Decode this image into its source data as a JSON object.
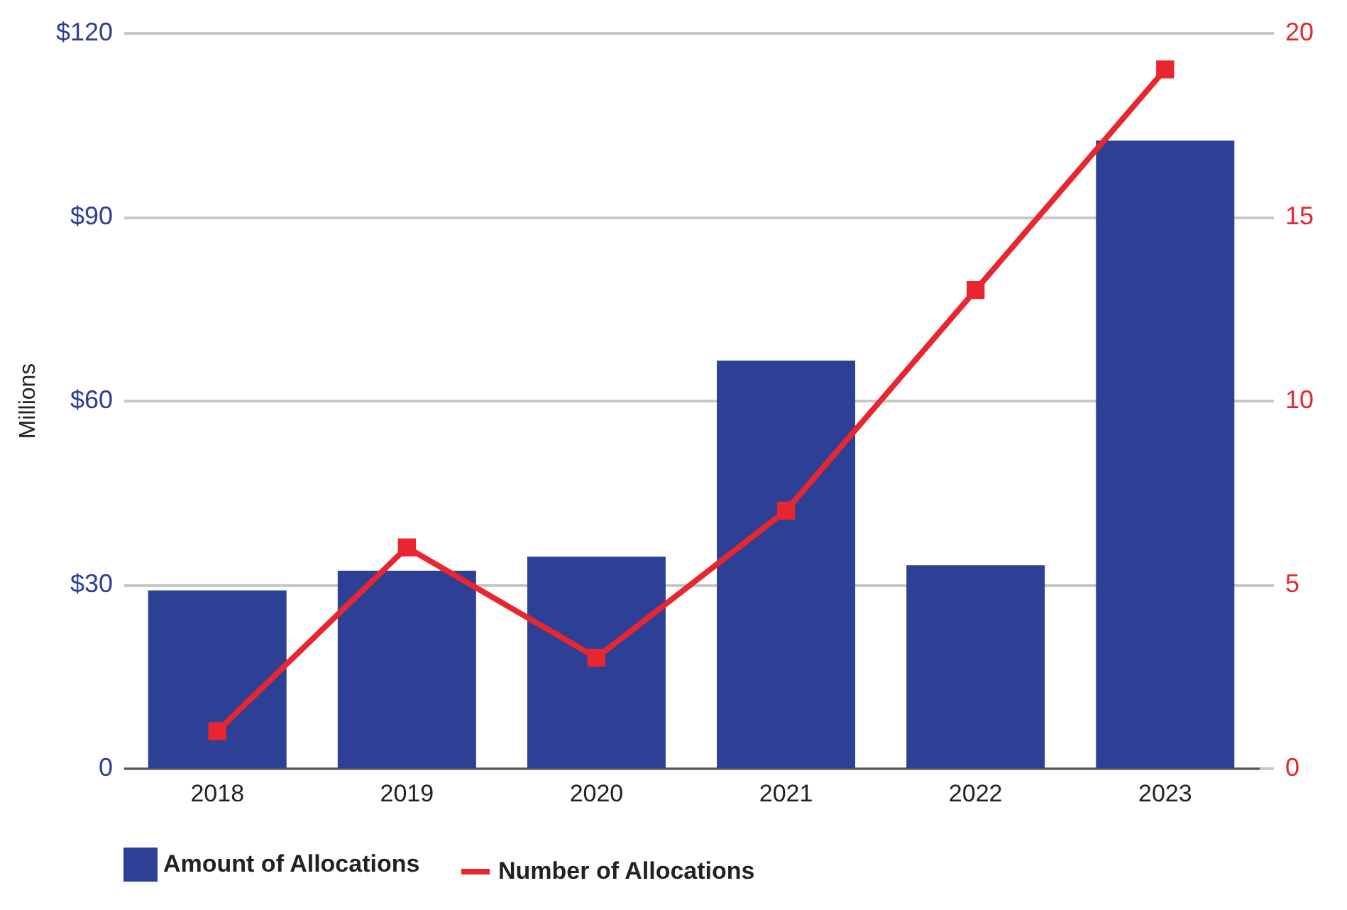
{
  "chart_data": {
    "type": "bar",
    "ylabel": "Millions",
    "categories": [
      "2018",
      "2019",
      "2020",
      "2021",
      "2022",
      "2023"
    ],
    "series": [
      {
        "name": "Amount of Allocations",
        "color": "#2e4095",
        "values": [
          29,
          32.2,
          34.5,
          66.5,
          33.1,
          102.4
        ]
      },
      {
        "name": "Number of Allocations",
        "type": "line",
        "axis": "y2",
        "color": "#e8262f",
        "values": [
          1,
          6,
          3,
          7,
          13,
          19
        ]
      }
    ],
    "ylim": [
      0,
      120
    ],
    "yticks": [
      {
        "value": 0,
        "label": "0"
      },
      {
        "value": 30,
        "label": "$30"
      },
      {
        "value": 60,
        "label": "$60"
      },
      {
        "value": 90,
        "label": "$90"
      },
      {
        "value": 120,
        "label": "$120"
      }
    ],
    "y2lim": [
      0,
      20
    ],
    "y2ticks": [
      0,
      5,
      10,
      15,
      20
    ],
    "grid": "y",
    "legend": "bottom",
    "marker": "square",
    "line_style": "solid"
  }
}
